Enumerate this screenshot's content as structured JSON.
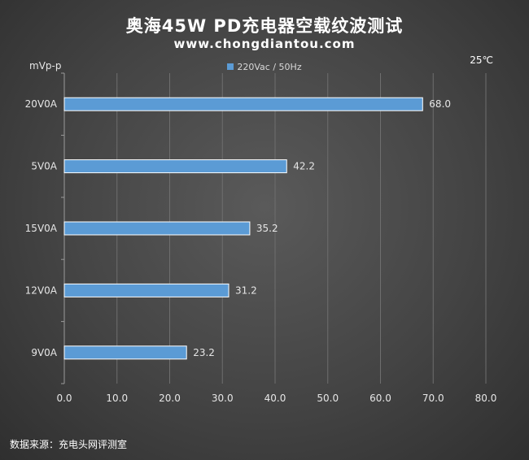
{
  "chart_data": {
    "type": "bar",
    "orientation": "horizontal",
    "title": "奥海45W PD充电器空载纹波测试",
    "subtitle": "www.chongdiantou.com",
    "ylabel": "mVp-p",
    "annotation": "25℃",
    "source": "数据来源：充电头网评测室",
    "categories": [
      "20V0A",
      "5V0A",
      "15V0A",
      "12V0A",
      "9V0A"
    ],
    "series": [
      {
        "name": "220Vac / 50Hz",
        "values": [
          68.0,
          42.2,
          35.2,
          31.2,
          23.2
        ],
        "color": "#5b9bd5"
      }
    ],
    "xlim": [
      0,
      80
    ],
    "xticks": [
      "0.0",
      "10.0",
      "20.0",
      "30.0",
      "40.0",
      "50.0",
      "60.0",
      "70.0",
      "80.0"
    ],
    "grid": true,
    "legend_position": "top"
  }
}
